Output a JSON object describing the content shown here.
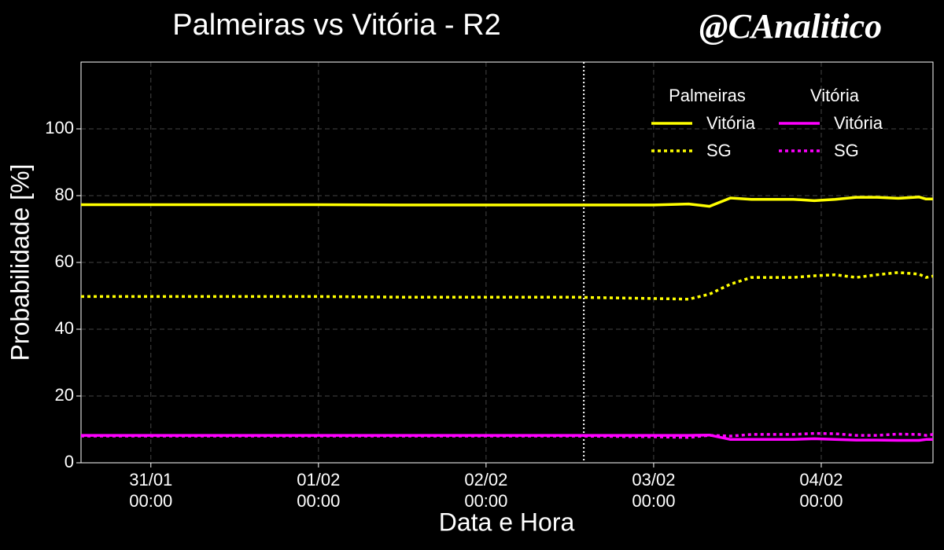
{
  "chart_data": {
    "type": "line",
    "title": "Palmeiras vs Vitória - R2",
    "watermark": "@CAnalitico",
    "xlabel": "Data e Hora",
    "ylabel": "Probabilidade [%]",
    "x": [
      "30/01 14:00",
      "31/01 12:00",
      "01/02 00:00",
      "01/02 12:00",
      "02/02 00:00",
      "02/02 12:00",
      "03/02 00:00",
      "03/02 05:00",
      "03/02 08:00",
      "03/02 11:00",
      "03/02 14:00",
      "03/02 20:00",
      "03/02 23:00",
      "04/02 02:00",
      "04/02 05:00",
      "04/02 08:00",
      "04/02 11:00",
      "04/02 14:00",
      "04/02 15:00",
      "04/02 16:00"
    ],
    "xlim": [
      "30/01 14:00",
      "04/02 16:00"
    ],
    "xticks": [
      {
        "value": "31/01 00:00",
        "label": "31/01\n00:00"
      },
      {
        "value": "01/02 00:00",
        "label": "01/02\n00:00"
      },
      {
        "value": "02/02 00:00",
        "label": "02/02\n00:00"
      },
      {
        "value": "03/02 00:00",
        "label": "03/02\n00:00"
      },
      {
        "value": "04/02 00:00",
        "label": "04/02\n00:00"
      }
    ],
    "marker_x": "02/02 14:00",
    "ylim": [
      0,
      120
    ],
    "yticks": [
      0,
      20,
      40,
      60,
      80,
      100
    ],
    "grid": true,
    "teams": [
      {
        "name": "Palmeiras",
        "color": "#ffff00",
        "series": [
          {
            "name": "Vitória",
            "style": "solid",
            "values": [
              77.3,
              77.3,
              77.3,
              77.2,
              77.2,
              77.2,
              77.2,
              77.5,
              76.8,
              79.3,
              78.9,
              78.9,
              78.5,
              78.9,
              79.5,
              79.5,
              79.2,
              79.6,
              79.0,
              79.0
            ]
          },
          {
            "name": "SG",
            "style": "dotted",
            "values": [
              49.8,
              49.8,
              49.8,
              49.6,
              49.6,
              49.6,
              49.2,
              49.0,
              50.5,
              53.5,
              55.5,
              55.5,
              56.0,
              56.3,
              55.5,
              56.3,
              57.0,
              56.5,
              55.5,
              55.9
            ]
          }
        ]
      },
      {
        "name": "Vitória",
        "color": "#ff00ff",
        "series": [
          {
            "name": "Vitória",
            "style": "solid",
            "values": [
              8.2,
              8.2,
              8.2,
              8.2,
              8.2,
              8.2,
              8.2,
              8.2,
              8.3,
              7.0,
              7.0,
              7.0,
              7.2,
              7.0,
              6.8,
              6.8,
              6.7,
              6.7,
              7.0,
              7.0
            ]
          },
          {
            "name": "SG",
            "style": "dotted",
            "values": [
              8.0,
              8.0,
              8.0,
              8.0,
              8.0,
              8.0,
              7.8,
              7.6,
              8.2,
              8.0,
              8.5,
              8.5,
              8.8,
              8.7,
              8.2,
              8.2,
              8.6,
              8.5,
              8.2,
              8.5
            ]
          }
        ]
      }
    ]
  }
}
